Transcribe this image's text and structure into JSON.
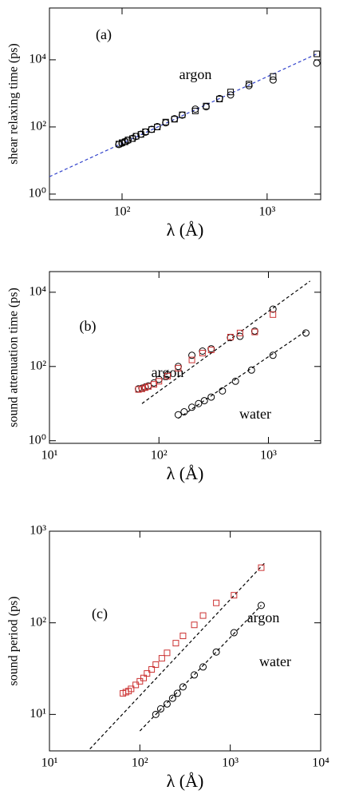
{
  "chart_data": [
    {
      "type": "scatter",
      "xlog": true,
      "ylog": true,
      "xlabel": "λ (Å)",
      "ylabel": "shear relaxing time (ps)",
      "annotations": [
        "(a)",
        "argon"
      ],
      "xlim": [
        31.6,
        2340
      ],
      "xticks": [
        {
          "value": 100,
          "label": "10²"
        },
        {
          "value": 1000,
          "label": "10³"
        }
      ],
      "ylim": [
        0.68,
        350000
      ],
      "yticks": [
        {
          "value": 1,
          "label": "10⁰"
        },
        {
          "value": 100,
          "label": "10²"
        },
        {
          "value": 10000,
          "label": "10⁴"
        }
      ],
      "series": [
        {
          "kind": "line",
          "dash": true,
          "color": "#3344cc",
          "x": [
            31.6,
            2200
          ],
          "values": [
            3.3,
            15000
          ]
        },
        {
          "kind": "scatter",
          "marker": "circle",
          "color": "#000000",
          "x": [
            95,
            100,
            105,
            110,
            118,
            125,
            135,
            145,
            160,
            175,
            200,
            230,
            260,
            320,
            380,
            470,
            560,
            750,
            1100,
            2200
          ],
          "values": [
            30,
            33,
            37,
            40,
            46,
            52,
            61,
            70,
            85,
            102,
            133,
            176,
            225,
            340,
            400,
            700,
            900,
            1700,
            2500,
            8000
          ]
        },
        {
          "kind": "scatter",
          "marker": "square",
          "color": "#000000",
          "x": [
            95,
            100,
            105,
            110,
            118,
            125,
            135,
            145,
            160,
            175,
            200,
            230,
            260,
            320,
            380,
            470,
            560,
            750,
            1100,
            2200
          ],
          "values": [
            31,
            34,
            36,
            41,
            45,
            53,
            60,
            72,
            84,
            100,
            140,
            170,
            230,
            300,
            420,
            680,
            1100,
            1900,
            3200,
            15000
          ]
        }
      ]
    },
    {
      "type": "scatter",
      "xlog": true,
      "ylog": true,
      "xlabel": "λ (Å)",
      "ylabel": "sound attenuation time (ps)",
      "annotations": [
        "(b)",
        "argon",
        "water"
      ],
      "xlim": [
        10,
        3000
      ],
      "xticks": [
        {
          "value": 10,
          "label": "10¹"
        },
        {
          "value": 100,
          "label": "10²"
        },
        {
          "value": 1000,
          "label": "10³"
        }
      ],
      "ylim": [
        0.85,
        36000
      ],
      "yticks": [
        {
          "value": 1,
          "label": "10⁰"
        },
        {
          "value": 100,
          "label": "10²"
        },
        {
          "value": 10000,
          "label": "10⁴"
        }
      ],
      "series": [
        {
          "kind": "line",
          "dash": true,
          "color": "#000000",
          "x": [
            70,
            2400
          ],
          "values": [
            10,
            20000
          ]
        },
        {
          "kind": "line",
          "dash": true,
          "color": "#000000",
          "x": [
            150,
            2200
          ],
          "values": [
            4,
            900
          ]
        },
        {
          "kind": "scatter",
          "marker": "circle",
          "color": "#000000",
          "x": [
            65,
            70,
            75,
            80,
            90,
            100,
            120,
            150,
            200,
            250,
            300,
            450,
            550,
            750,
            1100
          ],
          "values": [
            25,
            26,
            28,
            30,
            36,
            45,
            60,
            100,
            200,
            260,
            300,
            600,
            650,
            900,
            3500
          ]
        },
        {
          "kind": "scatter",
          "marker": "square",
          "color": "#cc3333",
          "x": [
            65,
            70,
            75,
            80,
            90,
            100,
            120,
            150,
            200,
            250,
            300,
            450,
            550,
            750,
            1100
          ],
          "values": [
            24,
            25,
            27,
            29,
            33,
            40,
            55,
            90,
            150,
            230,
            280,
            620,
            800,
            850,
            2500
          ]
        },
        {
          "kind": "scatter",
          "marker": "circle",
          "color": "#000000",
          "x": [
            150,
            170,
            200,
            230,
            260,
            300,
            380,
            500,
            700,
            1100,
            2200
          ],
          "values": [
            5,
            6,
            8,
            10,
            12,
            15,
            22,
            40,
            80,
            200,
            800
          ]
        }
      ]
    },
    {
      "type": "scatter",
      "xlog": true,
      "ylog": true,
      "xlabel": "λ (Å)",
      "ylabel": "sound period (ps)",
      "annotations": [
        "(c)",
        "argon",
        "water"
      ],
      "xlim": [
        10,
        10000
      ],
      "xticks": [
        {
          "value": 10,
          "label": "10¹"
        },
        {
          "value": 100,
          "label": "10²"
        },
        {
          "value": 1000,
          "label": "10³"
        },
        {
          "value": 10000,
          "label": "10⁴"
        }
      ],
      "ylim": [
        4,
        1000
      ],
      "yticks": [
        {
          "value": 10,
          "label": "10¹"
        },
        {
          "value": 100,
          "label": "10²"
        },
        {
          "value": 1000,
          "label": "10³"
        }
      ],
      "series": [
        {
          "kind": "line",
          "dash": true,
          "color": "#000000",
          "x": [
            28,
            2400
          ],
          "values": [
            4.2,
            450
          ]
        },
        {
          "kind": "line",
          "dash": true,
          "color": "#000000",
          "x": [
            100,
            2200
          ],
          "values": [
            6.6,
            155
          ]
        },
        {
          "kind": "scatter",
          "marker": "square",
          "color": "#cc3333",
          "x": [
            65,
            70,
            75,
            80,
            90,
            100,
            110,
            120,
            135,
            150,
            175,
            200,
            250,
            300,
            400,
            500,
            700,
            1100,
            2200
          ],
          "values": [
            17,
            17.5,
            18,
            19,
            21,
            23,
            25,
            28,
            31,
            35,
            41,
            47,
            60,
            72,
            95,
            120,
            165,
            200,
            400
          ]
        },
        {
          "kind": "scatter",
          "marker": "circle",
          "color": "#000000",
          "x": [
            150,
            170,
            200,
            230,
            260,
            300,
            400,
            500,
            700,
            1100,
            2200
          ],
          "values": [
            10,
            11.5,
            13,
            15,
            17,
            20,
            27,
            33,
            48,
            78,
            155
          ]
        }
      ]
    }
  ]
}
